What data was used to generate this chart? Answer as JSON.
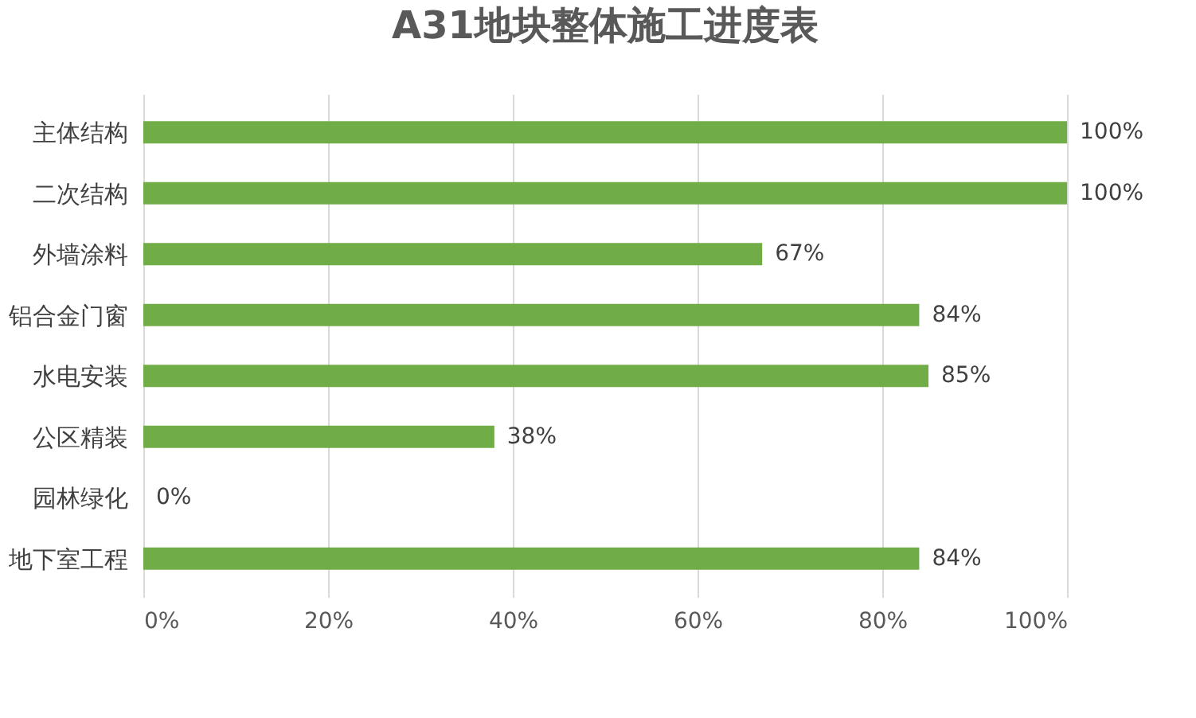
{
  "chart_data": {
    "type": "bar",
    "orientation": "horizontal",
    "title": "A31地块整体施工进度表",
    "categories": [
      "主体结构",
      "二次结构",
      "外墙涂料",
      "铝合金门窗",
      "水电安装",
      "公区精装",
      "园林绿化",
      "地下室工程"
    ],
    "values": [
      100,
      100,
      67,
      84,
      85,
      38,
      0,
      84
    ],
    "value_labels": [
      "100%",
      "100%",
      "67%",
      "84%",
      "85%",
      "38%",
      "0%",
      "84%"
    ],
    "color": "#70ad47",
    "xlim": [
      0,
      100
    ],
    "xticks": [
      {
        "value": 0,
        "label": "0%"
      },
      {
        "value": 20,
        "label": "20%"
      },
      {
        "value": 40,
        "label": "40%"
      },
      {
        "value": 60,
        "label": "60%"
      },
      {
        "value": 80,
        "label": "80%"
      },
      {
        "value": 100,
        "label": "100%"
      }
    ],
    "grid": "x"
  }
}
